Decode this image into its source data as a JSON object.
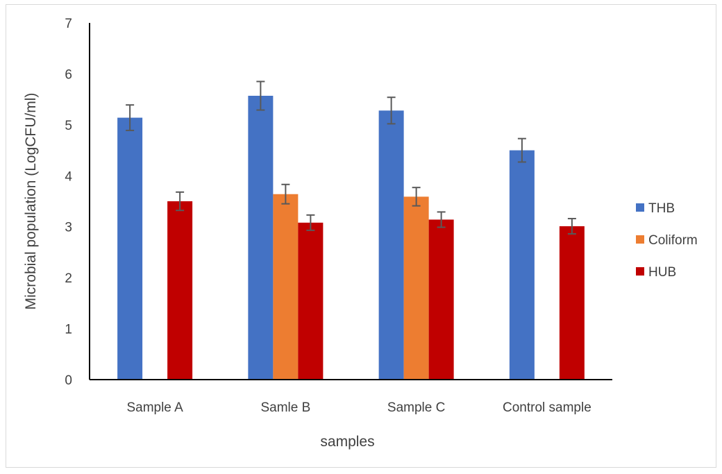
{
  "chart_data": {
    "type": "bar",
    "title": "",
    "xlabel": "samples",
    "ylabel": "Microbial population (LogCFU/ml)",
    "ylim": [
      0,
      7
    ],
    "yticks": [
      "0",
      "1",
      "2",
      "3",
      "4",
      "5",
      "6",
      "7"
    ],
    "categories": [
      "Sample A",
      "Samle B",
      "Sample C",
      "Control sample"
    ],
    "series": [
      {
        "name": "THB",
        "color": "#4472c4",
        "values": [
          5.14,
          5.57,
          5.28,
          4.5
        ],
        "errors": [
          0.25,
          0.28,
          0.26,
          0.23
        ]
      },
      {
        "name": "Coliform",
        "color": "#ed7d31",
        "values": [
          null,
          3.64,
          3.59,
          null
        ],
        "errors": [
          null,
          0.19,
          0.18,
          null
        ]
      },
      {
        "name": "HUB",
        "color": "#c00000",
        "values": [
          3.5,
          3.08,
          3.14,
          3.01
        ],
        "errors": [
          0.18,
          0.15,
          0.15,
          0.15
        ]
      }
    ],
    "grid": false,
    "legend_position": "right"
  }
}
